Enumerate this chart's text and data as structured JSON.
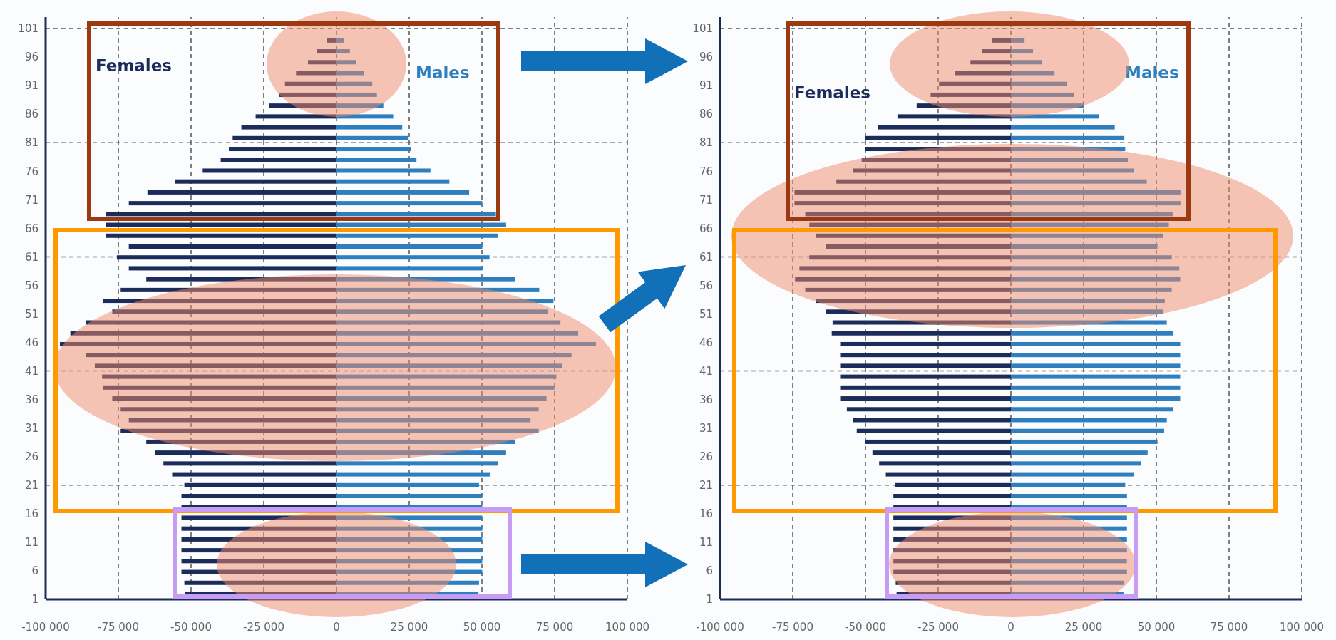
{
  "chart_data": [
    {
      "type": "bar",
      "orientation": "horizontal",
      "grid": "x",
      "stacked": true,
      "x": [
        2,
        3.9,
        5.8,
        7.7,
        9.6,
        11.5,
        13.4,
        15.3,
        17.2,
        19.1,
        21,
        22.9,
        24.8,
        26.7,
        28.6,
        30.5,
        32.4,
        34.3,
        36.2,
        38.1,
        40,
        41.9,
        43.8,
        45.7,
        47.6,
        49.5,
        51.4,
        53.3,
        55.2,
        57.1,
        59,
        60.9,
        62.8,
        64.7,
        66.6,
        68.5,
        70.4,
        72.3,
        74.2,
        76.1,
        78,
        79.9,
        81.8,
        83.7,
        85.6,
        87.5,
        89.4,
        91.3,
        93.2,
        95.1,
        97,
        98.9
      ],
      "series": [
        {
          "name": "Females",
          "color": "#1c2c5a",
          "values": [
            -52000,
            -52300,
            -53300,
            -53300,
            -53300,
            -53300,
            -53300,
            -53300,
            -53300,
            -53300,
            -52300,
            -56500,
            -59500,
            -62400,
            -65400,
            -74200,
            -71400,
            -74200,
            -77100,
            -80400,
            -80600,
            -83100,
            -86100,
            -95100,
            -91500,
            -86100,
            -77100,
            -80400,
            -74200,
            -65400,
            -71400,
            -75500,
            -71400,
            -79300,
            -79300,
            -79300,
            -71400,
            -65000,
            -55400,
            -46000,
            -39800,
            -37000,
            -35700,
            -32700,
            -27800,
            -23200,
            -19700,
            -17700,
            -13900,
            -9800,
            -6800,
            -3300
          ]
        },
        {
          "name": "Males",
          "color": "#2f7fbf",
          "values": [
            48800,
            49000,
            50100,
            50100,
            50100,
            50100,
            50100,
            50100,
            50100,
            50100,
            49000,
            52800,
            55600,
            58300,
            61300,
            69500,
            66700,
            69500,
            72200,
            74900,
            75600,
            77600,
            80800,
            89200,
            83100,
            77000,
            72700,
            74600,
            69700,
            61300,
            50100,
            52600,
            50100,
            55600,
            58300,
            54800,
            50100,
            45600,
            38800,
            32300,
            27500,
            25600,
            24800,
            22600,
            19500,
            16100,
            13900,
            12300,
            9500,
            6800,
            4600,
            2700
          ]
        }
      ],
      "xlim": [
        -100000,
        100000
      ],
      "xticks": [
        {
          "value": -100000,
          "label": "-100 000"
        },
        {
          "value": -75000,
          "label": "-75 000"
        },
        {
          "value": -50000,
          "label": "-50 000"
        },
        {
          "value": -25000,
          "label": "-25 000"
        },
        0,
        {
          "value": 25000,
          "label": "25 000"
        },
        {
          "value": 50000,
          "label": "50 000"
        },
        {
          "value": 75000,
          "label": "75 000"
        },
        {
          "value": 100000,
          "label": "100 000"
        }
      ],
      "ylim": [
        1,
        103
      ],
      "yticks": [
        1,
        6,
        11,
        16,
        21,
        26,
        31,
        36,
        41,
        46,
        51,
        56,
        61,
        66,
        71,
        76,
        81,
        86,
        91,
        96,
        101
      ],
      "ref_lines": [
        {
          "axis": "y",
          "value": 21,
          "line_style": "dashed"
        },
        {
          "axis": "y",
          "value": 41,
          "line_style": "dashed"
        },
        {
          "axis": "y",
          "value": 61,
          "line_style": "dashed"
        },
        {
          "axis": "y",
          "value": 81,
          "line_style": "dashed"
        },
        {
          "axis": "y",
          "value": 101,
          "line_style": "dashed"
        }
      ]
    },
    {
      "type": "bar",
      "orientation": "horizontal",
      "grid": "x",
      "stacked": true,
      "x": [
        2,
        3.9,
        5.8,
        7.7,
        9.6,
        11.5,
        13.4,
        15.3,
        17.2,
        19.1,
        21,
        22.9,
        24.8,
        26.7,
        28.6,
        30.5,
        32.4,
        34.3,
        36.2,
        38.1,
        40,
        41.9,
        43.8,
        45.7,
        47.6,
        49.5,
        51.4,
        53.3,
        55.2,
        57.1,
        59,
        60.9,
        62.8,
        64.7,
        66.6,
        68.5,
        70.4,
        72.3,
        74.2,
        76.1,
        78,
        79.9,
        81.8,
        83.7,
        85.6,
        87.5,
        89.4,
        91.3,
        93.2,
        95.1,
        97,
        98.9
      ],
      "series": [
        {
          "name": "Females",
          "color": "#1c2c5a",
          "values": [
            -39300,
            -39600,
            -40400,
            -40400,
            -40400,
            -40400,
            -40400,
            -40400,
            -40400,
            -40400,
            -39900,
            -43000,
            -45300,
            -47600,
            -50200,
            -53000,
            -54300,
            -56400,
            -58700,
            -58700,
            -58700,
            -58700,
            -58700,
            -58700,
            -61600,
            -61300,
            -63500,
            -67000,
            -70700,
            -74200,
            -72700,
            -69300,
            -63500,
            -67000,
            -69300,
            -70700,
            -74400,
            -74400,
            -60000,
            -54400,
            -51300,
            -50200,
            -50200,
            -45600,
            -39000,
            -32400,
            -27600,
            -24700,
            -19300,
            -13900,
            -9900,
            -6400
          ]
        },
        {
          "name": "Males",
          "color": "#2f7fbf",
          "values": [
            38700,
            39000,
            39900,
            39900,
            39900,
            39900,
            39900,
            39900,
            39900,
            39900,
            39300,
            42400,
            44700,
            47000,
            50400,
            52700,
            53600,
            55900,
            58200,
            58200,
            58200,
            58200,
            58200,
            58200,
            55900,
            53600,
            52400,
            52900,
            55300,
            58200,
            57900,
            55300,
            50400,
            52400,
            54300,
            55600,
            58300,
            58300,
            46700,
            42400,
            40200,
            39300,
            39000,
            35700,
            30400,
            25000,
            21600,
            19300,
            15000,
            10700,
            7600,
            4700
          ]
        }
      ],
      "xlim": [
        -100000,
        100000
      ],
      "xticks": [
        {
          "value": -100000,
          "label": "-100 000"
        },
        {
          "value": -75000,
          "label": "-75 000"
        },
        {
          "value": -50000,
          "label": "-50 000"
        },
        {
          "value": -25000,
          "label": "-25 000"
        },
        0,
        {
          "value": 25000,
          "label": "25 000"
        },
        {
          "value": 50000,
          "label": "50 000"
        },
        {
          "value": 75000,
          "label": "75 000"
        },
        {
          "value": 100000,
          "label": "100 000"
        }
      ],
      "ylim": [
        1,
        103
      ],
      "yticks": [
        1,
        6,
        11,
        16,
        21,
        26,
        31,
        36,
        41,
        46,
        51,
        56,
        61,
        66,
        71,
        76,
        81,
        86,
        91,
        96,
        101
      ],
      "ref_lines": [
        {
          "axis": "y",
          "value": 21,
          "line_style": "dashed"
        },
        {
          "axis": "y",
          "value": 41,
          "line_style": "dashed"
        },
        {
          "axis": "y",
          "value": 61,
          "line_style": "dashed"
        },
        {
          "axis": "y",
          "value": 81,
          "line_style": "dashed"
        },
        {
          "axis": "y",
          "value": 101,
          "line_style": "dashed"
        }
      ]
    }
  ]
}
